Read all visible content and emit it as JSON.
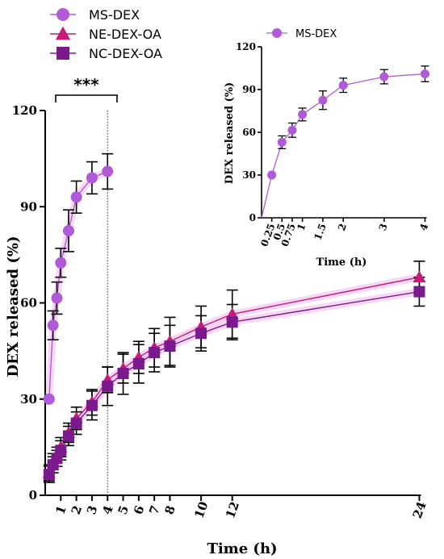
{
  "chart_data": [
    {
      "type": "line",
      "title": "",
      "xlabel": "Time (h)",
      "ylabel": "DEX released (%)",
      "x_ticks": [
        1,
        2,
        3,
        4,
        5,
        6,
        7,
        8,
        10,
        12,
        24
      ],
      "y_ticks": [
        0,
        30,
        60,
        90,
        120
      ],
      "xlim": [
        0,
        24
      ],
      "ylim": [
        0,
        120
      ],
      "legend_position": "top-left",
      "annotation": "***",
      "series": [
        {
          "name": "MS-DEX",
          "marker": "circle",
          "color": "#b05ad8",
          "x": [
            0.25,
            0.5,
            0.75,
            1,
            1.5,
            2,
            3,
            4
          ],
          "y": [
            30,
            53,
            61.5,
            72.5,
            82.5,
            93,
            99,
            101
          ],
          "err": [
            0,
            4.5,
            5,
            4.5,
            6.5,
            5,
            5,
            5.5
          ]
        },
        {
          "name": "NE-DEX-OA",
          "marker": "triangle",
          "color": "#c41a78",
          "x": [
            0.25,
            0.5,
            0.75,
            1,
            1.5,
            2,
            3,
            4,
            5,
            6,
            7,
            8,
            10,
            12,
            24
          ],
          "y": [
            7,
            10.5,
            12.5,
            15,
            19.5,
            24,
            29,
            36,
            39.5,
            43,
            46,
            48,
            52.5,
            56.5,
            68
          ],
          "err": [
            2.5,
            2.5,
            2.5,
            3,
            3,
            3.5,
            4,
            4,
            4.5,
            5,
            6,
            7.5,
            6.5,
            7.5,
            5
          ]
        },
        {
          "name": "NC-DEX-OA",
          "marker": "square",
          "color": "#7a1a8c",
          "x": [
            0.25,
            0.5,
            0.75,
            1,
            1.5,
            2,
            3,
            4,
            5,
            6,
            7,
            8,
            10,
            12,
            24
          ],
          "y": [
            6.5,
            9.5,
            11.5,
            14,
            18.5,
            22.5,
            28,
            34,
            38,
            41,
            44.5,
            46.5,
            50.5,
            54,
            63.5
          ],
          "err": [
            2.5,
            2.5,
            2.5,
            3,
            3,
            3.5,
            4.5,
            6,
            6.5,
            6,
            6,
            6.5,
            5.5,
            5.5,
            4.5
          ]
        }
      ]
    },
    {
      "type": "line",
      "title": "",
      "xlabel": "Time (h)",
      "ylabel": "DEX released (%)",
      "x_ticks": [
        0.25,
        0.5,
        0.75,
        1,
        1.5,
        2,
        3,
        4
      ],
      "x_tick_labels": [
        "0.25",
        "0.5",
        "0.75",
        "1",
        "1.5",
        "2",
        "3",
        "4"
      ],
      "y_ticks": [
        0,
        30,
        60,
        90,
        120
      ],
      "xlim": [
        0,
        4
      ],
      "ylim": [
        0,
        120
      ],
      "legend_position": "top-left",
      "series": [
        {
          "name": "MS-DEX",
          "marker": "circle",
          "color": "#b05ad8",
          "x": [
            0.25,
            0.5,
            0.75,
            1,
            1.5,
            2,
            3,
            4
          ],
          "y": [
            30,
            53,
            61.5,
            72.5,
            82.5,
            93,
            99,
            101
          ],
          "err": [
            0,
            4.5,
            5,
            4.5,
            6.5,
            5,
            5,
            5.5
          ]
        }
      ]
    }
  ]
}
